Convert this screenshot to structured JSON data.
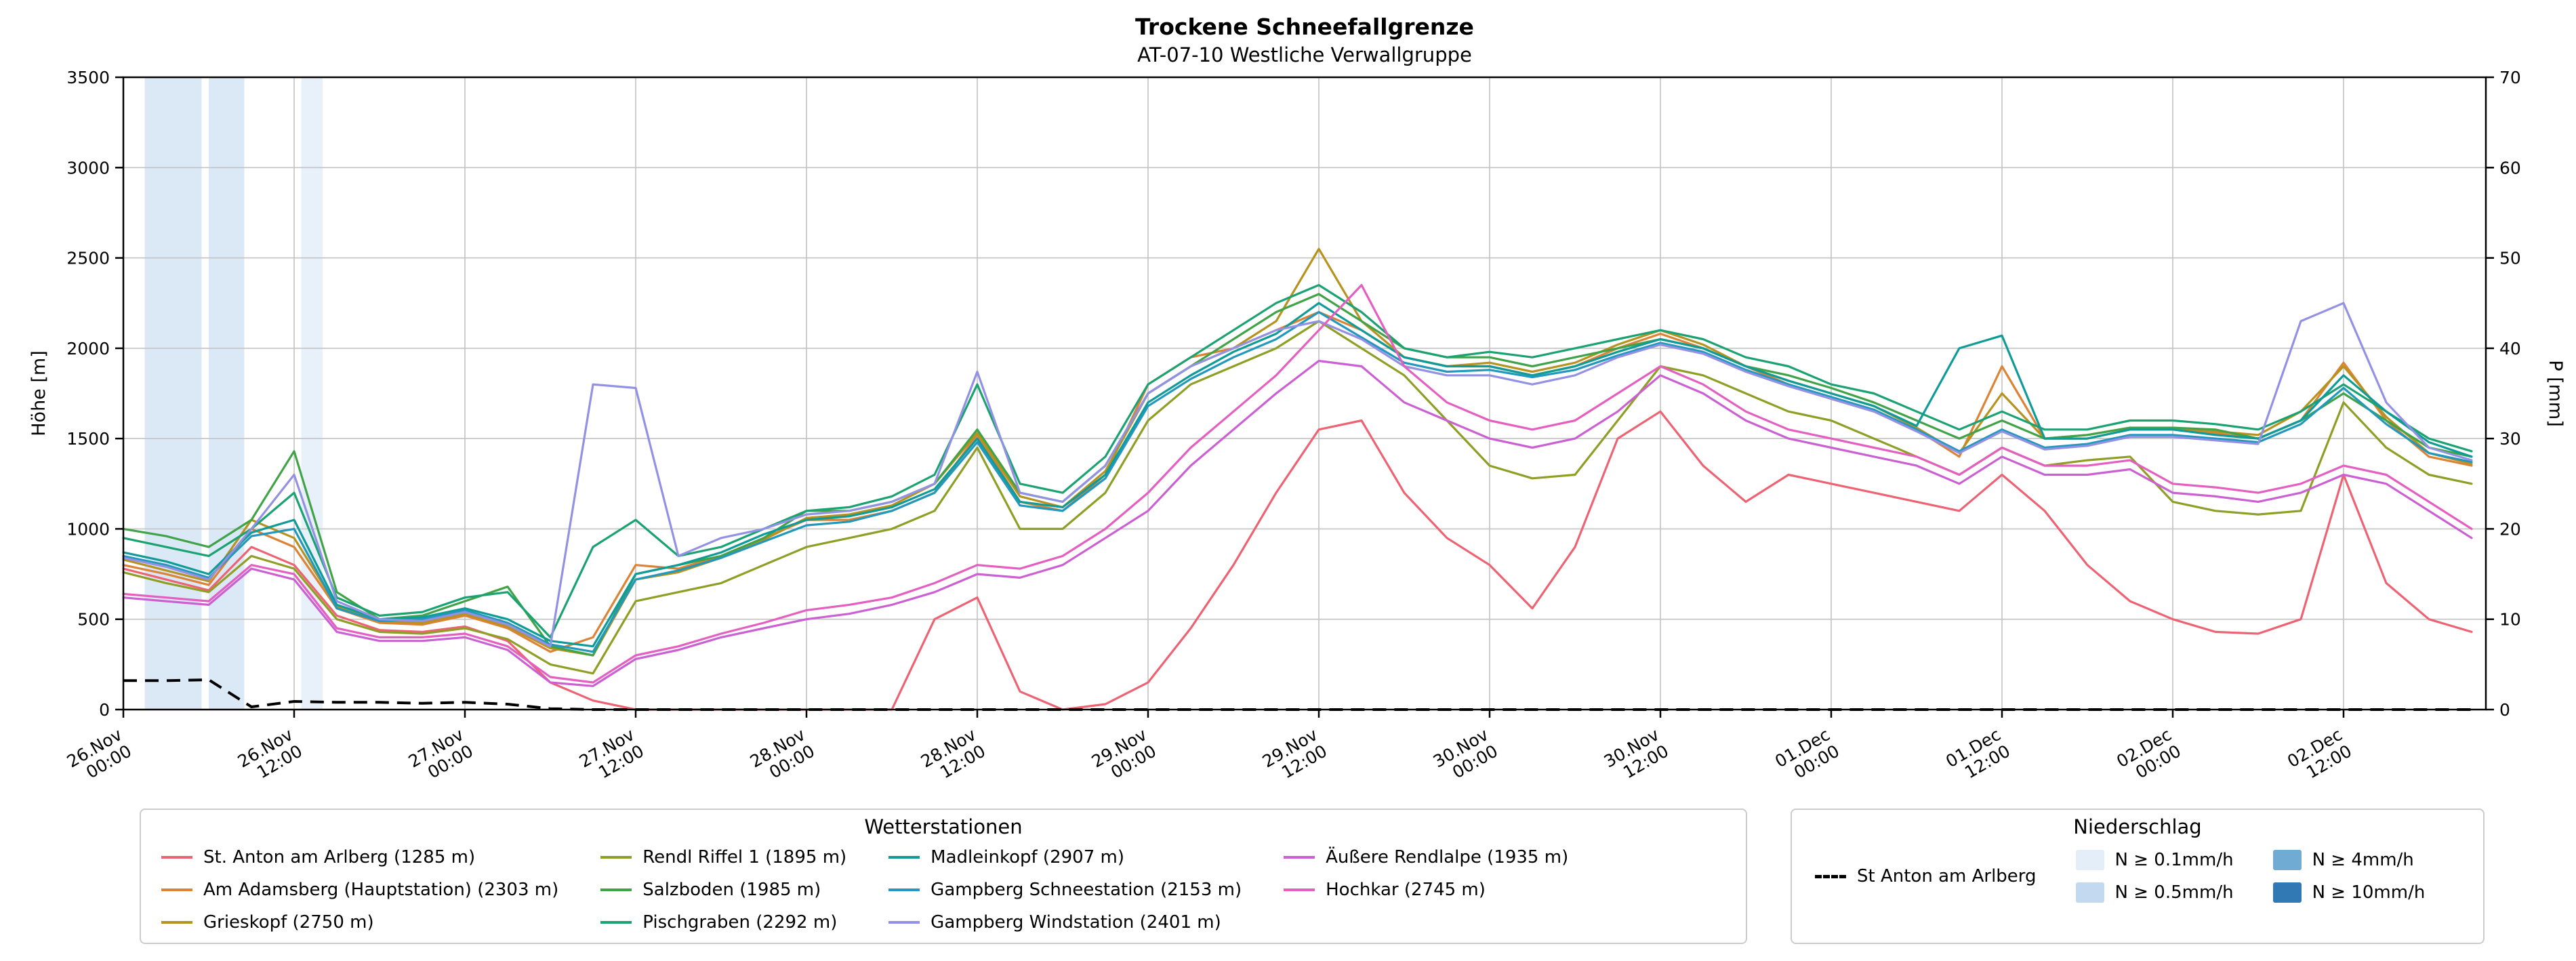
{
  "title": "Trockene Schneefallgrenze",
  "subtitle": "AT-07-10 Westliche Verwallgruppe",
  "legend_stations": {
    "title": "Wetterstationen"
  },
  "legend_precip": {
    "title": "Niederschlag",
    "line_label": "St Anton am Arlberg",
    "levels": [
      {
        "label": "N ≥ 0.1mm/h",
        "color": "#e4eef9"
      },
      {
        "label": "N ≥ 0.5mm/h",
        "color": "#c3d9ef"
      },
      {
        "label": "N ≥ 4mm/h",
        "color": "#6fabd3"
      },
      {
        "label": "N ≥ 10mm/h",
        "color": "#3079b5"
      }
    ]
  },
  "chart_data": {
    "type": "line",
    "title": "Trockene Schneefallgrenze",
    "subtitle": "AT-07-10 Westliche Verwallgruppe",
    "ylabel_left": "Höhe [m]",
    "ylabel_right": "P [mm]",
    "ylim_left": [
      0,
      3500
    ],
    "ylim_right": [
      0,
      70
    ],
    "yticks_left": [
      0,
      500,
      1000,
      1500,
      2000,
      2500,
      3000,
      3500
    ],
    "yticks_right": [
      0,
      10,
      20,
      30,
      40,
      50,
      60,
      70
    ],
    "xlim_hours": [
      0,
      166
    ],
    "xticks": [
      {
        "hour": 0,
        "date": "26.Nov",
        "time": "00:00"
      },
      {
        "hour": 12,
        "date": "26.Nov",
        "time": "12:00"
      },
      {
        "hour": 24,
        "date": "27.Nov",
        "time": "00:00"
      },
      {
        "hour": 36,
        "date": "27.Nov",
        "time": "12:00"
      },
      {
        "hour": 48,
        "date": "28.Nov",
        "time": "00:00"
      },
      {
        "hour": 60,
        "date": "28.Nov",
        "time": "12:00"
      },
      {
        "hour": 72,
        "date": "29.Nov",
        "time": "00:00"
      },
      {
        "hour": 84,
        "date": "29.Nov",
        "time": "12:00"
      },
      {
        "hour": 96,
        "date": "30.Nov",
        "time": "00:00"
      },
      {
        "hour": 108,
        "date": "30.Nov",
        "time": "12:00"
      },
      {
        "hour": 120,
        "date": "01.Dec",
        "time": "00:00"
      },
      {
        "hour": 132,
        "date": "01.Dec",
        "time": "12:00"
      },
      {
        "hour": 144,
        "date": "02.Dec",
        "time": "00:00"
      },
      {
        "hour": 156,
        "date": "02.Dec",
        "time": "12:00"
      }
    ],
    "x_hours": [
      0,
      3,
      6,
      9,
      12,
      15,
      18,
      21,
      24,
      27,
      30,
      33,
      36,
      39,
      42,
      45,
      48,
      51,
      54,
      57,
      60,
      63,
      66,
      69,
      72,
      75,
      78,
      81,
      84,
      87,
      90,
      93,
      96,
      99,
      102,
      105,
      108,
      111,
      114,
      117,
      120,
      123,
      126,
      129,
      132,
      135,
      138,
      141,
      144,
      147,
      150,
      153,
      156,
      159,
      162,
      165
    ],
    "series": [
      {
        "id": "st-anton",
        "name": "St. Anton am Arlberg (1285 m)",
        "color": "#ee6373",
        "values": [
          780,
          720,
          660,
          900,
          800,
          520,
          440,
          430,
          460,
          380,
          150,
          50,
          0,
          0,
          0,
          0,
          0,
          0,
          0,
          500,
          620,
          100,
          0,
          30,
          150,
          450,
          800,
          1200,
          1550,
          1600,
          1200,
          950,
          800,
          560,
          900,
          1500,
          1650,
          1350,
          1150,
          1300,
          1250,
          1200,
          1150,
          1100,
          1300,
          1100,
          800,
          600,
          500,
          430,
          420,
          500,
          1300,
          700,
          500,
          430
        ]
      },
      {
        "id": "adamsberg",
        "name": "Am Adamsberg (Hauptstation) (2303 m)",
        "color": "#dd8335",
        "values": [
          800,
          750,
          690,
          1000,
          900,
          560,
          480,
          470,
          520,
          450,
          320,
          400,
          800,
          780,
          850,
          950,
          1050,
          1050,
          1100,
          1200,
          1520,
          1150,
          1100,
          1300,
          1800,
          1950,
          2000,
          2100,
          2200,
          2100,
          1950,
          1900,
          1900,
          1850,
          1900,
          2000,
          2080,
          2000,
          1900,
          1800,
          1720,
          1650,
          1550,
          1400,
          1900,
          1500,
          1500,
          1550,
          1550,
          1530,
          1500,
          1600,
          1920,
          1600,
          1400,
          1350
        ]
      },
      {
        "id": "grieskopf",
        "name": "Grieskopf (2750 m)",
        "color": "#b6921f",
        "values": [
          830,
          770,
          710,
          1050,
          950,
          570,
          490,
          480,
          530,
          460,
          340,
          300,
          720,
          760,
          840,
          940,
          1060,
          1080,
          1130,
          1250,
          1530,
          1180,
          1120,
          1320,
          1750,
          1900,
          2000,
          2150,
          2550,
          2150,
          1950,
          1900,
          1920,
          1870,
          1920,
          2020,
          2100,
          2020,
          1900,
          1820,
          1750,
          1680,
          1560,
          1420,
          1750,
          1500,
          1520,
          1560,
          1560,
          1540,
          1520,
          1650,
          1900,
          1620,
          1420,
          1360
        ]
      },
      {
        "id": "rendl-riffel",
        "name": "Rendl Riffel 1 (1895 m)",
        "color": "#8f9f25",
        "values": [
          760,
          700,
          650,
          850,
          780,
          500,
          430,
          420,
          450,
          390,
          250,
          200,
          600,
          650,
          700,
          800,
          900,
          950,
          1000,
          1100,
          1450,
          1000,
          1000,
          1200,
          1600,
          1800,
          1900,
          2000,
          2150,
          2000,
          1850,
          1600,
          1350,
          1280,
          1300,
          1600,
          1900,
          1850,
          1750,
          1650,
          1600,
          1500,
          1400,
          1300,
          1450,
          1350,
          1380,
          1400,
          1150,
          1100,
          1080,
          1100,
          1700,
          1450,
          1300,
          1250
        ]
      },
      {
        "id": "salzboden",
        "name": "Salzboden (1985 m)",
        "color": "#41a348",
        "values": [
          1000,
          960,
          900,
          1050,
          1430,
          650,
          500,
          520,
          600,
          680,
          350,
          300,
          750,
          800,
          850,
          950,
          1100,
          1100,
          1150,
          1250,
          1550,
          1200,
          1150,
          1350,
          1750,
          1900,
          2050,
          2200,
          2300,
          2150,
          2000,
          1950,
          1950,
          1900,
          1950,
          2000,
          2050,
          2000,
          1900,
          1850,
          1780,
          1700,
          1600,
          1500,
          1600,
          1500,
          1520,
          1560,
          1560,
          1550,
          1500,
          1600,
          1750,
          1600,
          1450,
          1400
        ]
      },
      {
        "id": "pischgraben",
        "name": "Pischgraben (2292 m)",
        "color": "#1ba272",
        "values": [
          950,
          900,
          850,
          1000,
          1200,
          620,
          520,
          540,
          620,
          650,
          400,
          900,
          1050,
          850,
          900,
          1000,
          1100,
          1120,
          1180,
          1300,
          1800,
          1250,
          1200,
          1400,
          1800,
          1950,
          2100,
          2250,
          2350,
          2200,
          2000,
          1950,
          1980,
          1950,
          2000,
          2050,
          2100,
          2050,
          1950,
          1900,
          1800,
          1750,
          1650,
          1550,
          1650,
          1550,
          1550,
          1600,
          1600,
          1580,
          1550,
          1650,
          1800,
          1650,
          1500,
          1430
        ]
      },
      {
        "id": "madleinkopf",
        "name": "Madleinkopf (2907 m)",
        "color": "#0f9b97",
        "values": [
          870,
          820,
          750,
          980,
          1050,
          580,
          500,
          510,
          560,
          500,
          380,
          350,
          750,
          800,
          870,
          970,
          1050,
          1070,
          1120,
          1220,
          1500,
          1150,
          1120,
          1300,
          1700,
          1850,
          1980,
          2080,
          2250,
          2100,
          1950,
          1900,
          1900,
          1850,
          1900,
          1980,
          2050,
          2000,
          1900,
          1820,
          1750,
          1680,
          1570,
          2000,
          2070,
          1500,
          1500,
          1550,
          1550,
          1520,
          1500,
          1600,
          1850,
          1650,
          1480,
          1400
        ]
      },
      {
        "id": "gampberg-schnee",
        "name": "Gampberg Schneestation (2153 m)",
        "color": "#2298bd",
        "values": [
          850,
          800,
          730,
          960,
          1000,
          560,
          490,
          500,
          550,
          480,
          360,
          320,
          720,
          770,
          840,
          930,
          1020,
          1040,
          1100,
          1200,
          1480,
          1130,
          1100,
          1280,
          1680,
          1830,
          1950,
          2050,
          2200,
          2060,
          1920,
          1870,
          1880,
          1840,
          1880,
          1960,
          2030,
          1980,
          1880,
          1800,
          1730,
          1660,
          1550,
          1430,
          1550,
          1450,
          1470,
          1520,
          1520,
          1500,
          1480,
          1580,
          1780,
          1580,
          1420,
          1370
        ]
      },
      {
        "id": "gampberg-wind",
        "name": "Gampberg Windstation (2401 m)",
        "color": "#9391e4",
        "values": [
          840,
          790,
          720,
          1000,
          1300,
          600,
          500,
          490,
          540,
          470,
          350,
          1800,
          1780,
          850,
          950,
          1000,
          1080,
          1100,
          1150,
          1250,
          1870,
          1200,
          1150,
          1350,
          1750,
          1900,
          2000,
          2100,
          2150,
          2050,
          1900,
          1850,
          1850,
          1800,
          1850,
          1950,
          2020,
          1970,
          1870,
          1790,
          1720,
          1650,
          1540,
          1420,
          1540,
          1440,
          1460,
          1510,
          1510,
          1490,
          1470,
          2150,
          2250,
          1700,
          1450,
          1380
        ]
      },
      {
        "id": "rendlalpe",
        "name": "Äußere Rendlalpe (1935 m)",
        "color": "#cb60d3",
        "values": [
          620,
          600,
          580,
          780,
          720,
          430,
          380,
          380,
          400,
          330,
          150,
          130,
          280,
          330,
          400,
          450,
          500,
          530,
          580,
          650,
          750,
          730,
          800,
          950,
          1100,
          1350,
          1550,
          1750,
          1930,
          1900,
          1700,
          1600,
          1500,
          1450,
          1500,
          1650,
          1850,
          1750,
          1600,
          1500,
          1450,
          1400,
          1350,
          1250,
          1400,
          1300,
          1300,
          1330,
          1200,
          1180,
          1150,
          1200,
          1300,
          1250,
          1100,
          950
        ]
      },
      {
        "id": "hochkar",
        "name": "Hochkar (2745 m)",
        "color": "#e45fc0",
        "values": [
          640,
          620,
          600,
          800,
          750,
          450,
          400,
          400,
          420,
          350,
          180,
          150,
          300,
          350,
          420,
          480,
          550,
          580,
          620,
          700,
          800,
          780,
          850,
          1000,
          1200,
          1450,
          1650,
          1850,
          2100,
          2350,
          1900,
          1700,
          1600,
          1550,
          1600,
          1750,
          1900,
          1800,
          1650,
          1550,
          1500,
          1450,
          1400,
          1300,
          1450,
          1350,
          1350,
          1380,
          1250,
          1230,
          1200,
          1250,
          1350,
          1300,
          1150,
          1000
        ]
      }
    ],
    "precip_line": {
      "name": "St Anton am Arlberg",
      "axis": "right",
      "unit": "mm",
      "color": "#000000",
      "style": "dashed",
      "values": [
        3.2,
        3.2,
        3.3,
        0.3,
        0.9,
        0.8,
        0.8,
        0.7,
        0.8,
        0.6,
        0.1,
        0,
        0,
        0,
        0,
        0,
        0,
        0,
        0,
        0,
        0,
        0,
        0,
        0,
        0,
        0,
        0,
        0,
        0,
        0,
        0,
        0,
        0,
        0,
        0,
        0,
        0,
        0,
        0,
        0,
        0,
        0,
        0,
        0,
        0,
        0,
        0,
        0,
        0,
        0,
        0,
        0,
        0,
        0,
        0,
        0
      ]
    },
    "precip_bands": [
      {
        "start_hour": 1.5,
        "end_hour": 5.5,
        "level": "N ≥ 0.5mm/h",
        "color": "#dbe8f6"
      },
      {
        "start_hour": 6.0,
        "end_hour": 8.5,
        "level": "N ≥ 0.5mm/h",
        "color": "#dbe8f6"
      },
      {
        "start_hour": 12.5,
        "end_hour": 14.0,
        "level": "N ≥ 0.1mm/h",
        "color": "#e8f1fa"
      }
    ]
  }
}
